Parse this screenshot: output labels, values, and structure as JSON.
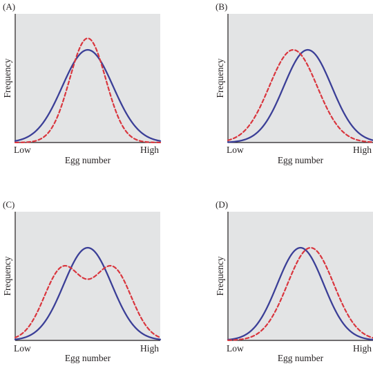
{
  "colors": {
    "plot_background": "#e3e4e5",
    "axis": "#231f20",
    "solid_series": "#3b3f97",
    "dashed_series": "#d9363e"
  },
  "chart_data": [
    {
      "type": "line",
      "panel_label": "(A)",
      "xlabel": "Egg number",
      "ylabel": "Frequency",
      "x_tick_labels": [
        "Low",
        "High"
      ],
      "xlim": [
        0,
        1
      ],
      "ylim": [
        0,
        1
      ],
      "grid": false,
      "series": [
        {
          "style": "solid",
          "color": "#3b3f97",
          "distribution": "normal",
          "mean": 0.5,
          "sd": 0.175,
          "peak": 0.72
        },
        {
          "style": "dashed",
          "color": "#d9363e",
          "distribution": "normal",
          "mean": 0.5,
          "sd": 0.125,
          "peak": 0.81
        }
      ]
    },
    {
      "type": "line",
      "panel_label": "(B)",
      "xlabel": "Egg number",
      "ylabel": "Frequency",
      "x_tick_labels": [
        "Low",
        "High"
      ],
      "xlim": [
        0,
        1
      ],
      "ylim": [
        0,
        1
      ],
      "grid": false,
      "series": [
        {
          "style": "solid",
          "color": "#3b3f97",
          "distribution": "normal",
          "mean": 0.55,
          "sd": 0.165,
          "peak": 0.72
        },
        {
          "style": "dashed",
          "color": "#d9363e",
          "distribution": "normal",
          "mean": 0.45,
          "sd": 0.165,
          "peak": 0.72
        }
      ]
    },
    {
      "type": "line",
      "panel_label": "(C)",
      "xlabel": "Egg number",
      "ylabel": "Frequency",
      "x_tick_labels": [
        "Low",
        "High"
      ],
      "xlim": [
        0,
        1
      ],
      "ylim": [
        0,
        1
      ],
      "grid": false,
      "series": [
        {
          "style": "solid",
          "color": "#3b3f97",
          "distribution": "normal",
          "mean": 0.5,
          "sd": 0.165,
          "peak": 0.72
        },
        {
          "style": "dashed",
          "color": "#d9363e",
          "distribution": "bimodal",
          "means": [
            0.33,
            0.67
          ],
          "sd": 0.13,
          "peak": 0.58
        }
      ]
    },
    {
      "type": "line",
      "panel_label": "(D)",
      "xlabel": "Egg number",
      "ylabel": "Frequency",
      "x_tick_labels": [
        "Low",
        "High"
      ],
      "xlim": [
        0,
        1
      ],
      "ylim": [
        0,
        1
      ],
      "grid": false,
      "series": [
        {
          "style": "solid",
          "color": "#3b3f97",
          "distribution": "normal",
          "mean": 0.5,
          "sd": 0.16,
          "peak": 0.72
        },
        {
          "style": "dashed",
          "color": "#d9363e",
          "distribution": "normal",
          "mean": 0.57,
          "sd": 0.16,
          "peak": 0.72
        }
      ]
    }
  ]
}
